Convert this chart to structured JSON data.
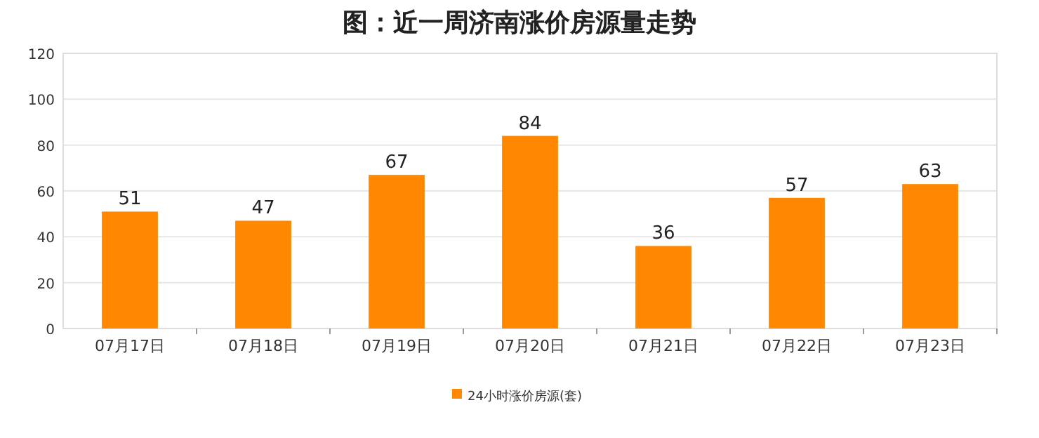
{
  "chart_data": {
    "type": "bar",
    "title": "图：近一周济南涨价房源量走势",
    "categories": [
      "07月17日",
      "07月18日",
      "07月19日",
      "07月20日",
      "07月21日",
      "07月22日",
      "07月23日"
    ],
    "series": [
      {
        "name": "24小时涨价房源(套)",
        "color": "#ff8800",
        "values": [
          51,
          47,
          67,
          84,
          36,
          57,
          63
        ]
      }
    ],
    "ylim": [
      0,
      120
    ],
    "yticks": [
      0,
      20,
      40,
      60,
      80,
      100,
      120
    ],
    "grid": "y",
    "legend": "bottom",
    "data_labels": true
  }
}
